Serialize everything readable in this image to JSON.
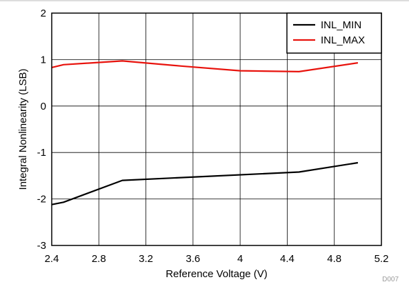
{
  "chart_data": {
    "type": "line",
    "xlabel": "Reference Voltage (V)",
    "ylabel": "Integral Nonlinearity (LSB)",
    "xlim": [
      2.4,
      5.2
    ],
    "ylim": [
      -3,
      2
    ],
    "x_ticks": [
      "2.4",
      "2.8",
      "3.2",
      "3.6",
      "4",
      "4.4",
      "4.8",
      "5.2"
    ],
    "y_ticks": [
      "2",
      "1",
      "0",
      "-1",
      "-2",
      "-3"
    ],
    "grid": true,
    "legend_position": "top-right",
    "series": [
      {
        "name": "INL_MIN",
        "color": "#000000",
        "x": [
          2.4,
          2.5,
          3.0,
          4.5,
          5.0
        ],
        "y": [
          -2.12,
          -2.07,
          -1.6,
          -1.42,
          -1.22
        ]
      },
      {
        "name": "INL_MAX",
        "color": "#e8120c",
        "x": [
          2.4,
          2.5,
          3.0,
          3.5,
          4.0,
          4.5,
          5.0
        ],
        "y": [
          0.83,
          0.89,
          0.97,
          0.86,
          0.76,
          0.74,
          0.93
        ]
      }
    ],
    "footnote": "D007"
  }
}
